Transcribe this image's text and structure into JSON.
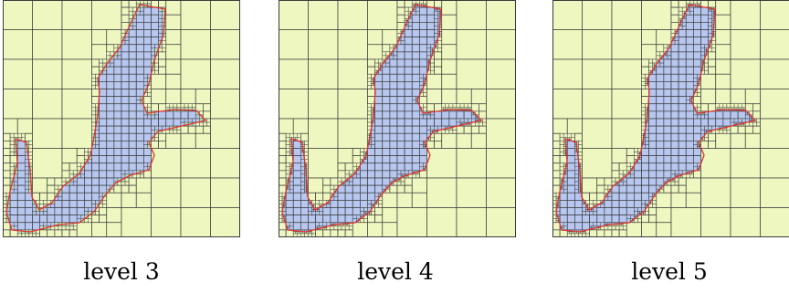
{
  "colors": {
    "land": "#eef7bf",
    "coastal_cell": "#c2e2b8",
    "water": "#b7c7ef",
    "grid_line": "#3b3b3b",
    "coastline": "#e03232"
  },
  "panels": [
    {
      "caption": "level 3",
      "level": 3
    },
    {
      "caption": "level 4",
      "level": 4
    },
    {
      "caption": "level 5",
      "level": 5
    }
  ]
}
